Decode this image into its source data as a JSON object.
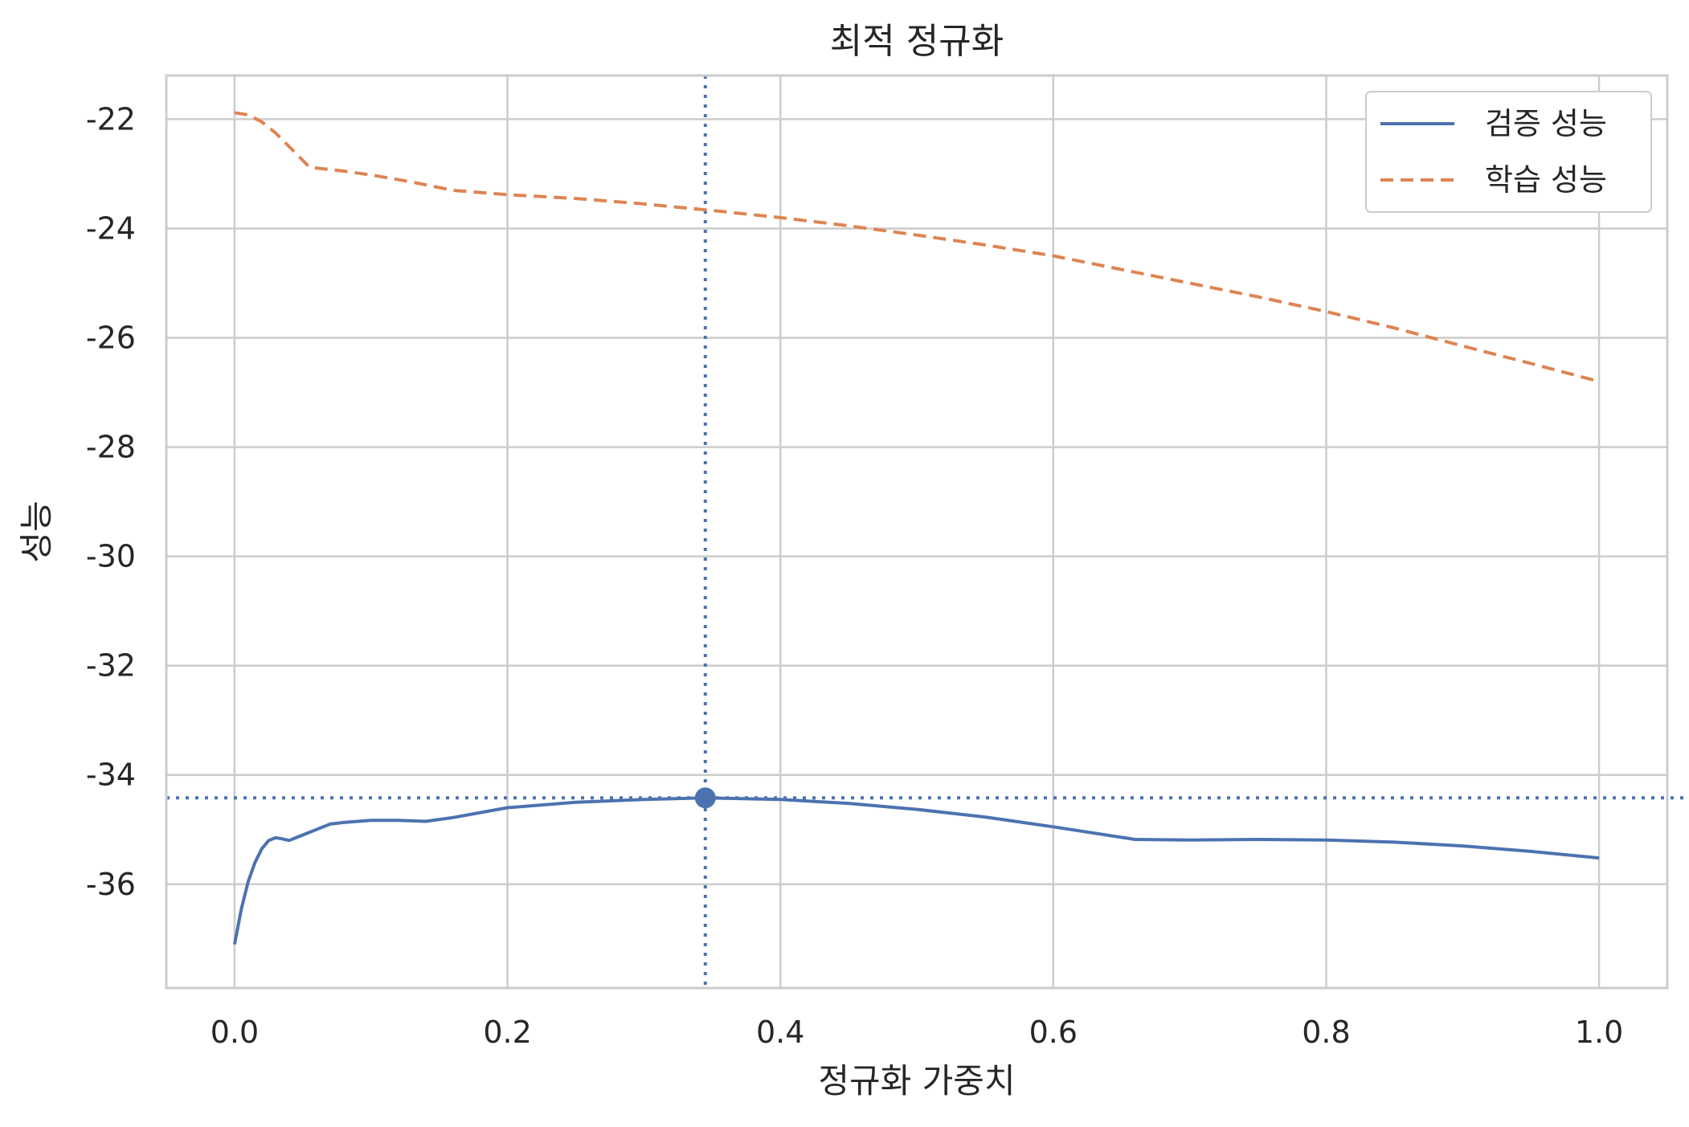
{
  "chart_data": {
    "type": "line",
    "title": "최적 정규화",
    "xlabel": "정규화 가중치",
    "ylabel": "성능",
    "xlim": [
      -0.05,
      1.05
    ],
    "ylim": [
      -37.9,
      -21.2
    ],
    "xticks": [
      0.0,
      0.2,
      0.4,
      0.6,
      0.8,
      1.0
    ],
    "xtick_labels": [
      "0.0",
      "0.2",
      "0.4",
      "0.6",
      "0.8",
      "1.0"
    ],
    "yticks": [
      -22,
      -24,
      -26,
      -28,
      -30,
      -32,
      -34,
      -36
    ],
    "ytick_labels": [
      "-22",
      "-24",
      "-26",
      "-28",
      "-30",
      "-32",
      "-34",
      "-36"
    ],
    "grid": true,
    "legend_position": "top-right",
    "series": [
      {
        "name": "검증 성능",
        "color": "#4c72b0",
        "style": "solid",
        "x": [
          0.0,
          0.005,
          0.01,
          0.015,
          0.02,
          0.025,
          0.03,
          0.035,
          0.04,
          0.045,
          0.05,
          0.06,
          0.07,
          0.08,
          0.1,
          0.12,
          0.14,
          0.16,
          0.2,
          0.25,
          0.3,
          0.345,
          0.4,
          0.45,
          0.5,
          0.55,
          0.6,
          0.66,
          0.7,
          0.75,
          0.8,
          0.85,
          0.9,
          0.95,
          1.0
        ],
        "y": [
          -37.1,
          -36.45,
          -35.95,
          -35.6,
          -35.35,
          -35.2,
          -35.15,
          -35.17,
          -35.2,
          -35.15,
          -35.1,
          -35.0,
          -34.9,
          -34.87,
          -34.83,
          -34.83,
          -34.85,
          -34.78,
          -34.6,
          -34.5,
          -34.45,
          -34.42,
          -34.45,
          -34.52,
          -34.63,
          -34.77,
          -34.95,
          -35.18,
          -35.19,
          -35.18,
          -35.19,
          -35.23,
          -35.3,
          -35.4,
          -35.52
        ]
      },
      {
        "name": "학습 성능",
        "color": "#dd8452",
        "style": "dashed",
        "x": [
          0.0,
          0.01,
          0.02,
          0.03,
          0.04,
          0.055,
          0.08,
          0.1,
          0.13,
          0.16,
          0.2,
          0.25,
          0.3,
          0.35,
          0.4,
          0.45,
          0.5,
          0.55,
          0.6,
          0.65,
          0.7,
          0.75,
          0.8,
          0.85,
          0.9,
          0.95,
          1.0
        ],
        "y": [
          -21.88,
          -21.92,
          -22.05,
          -22.25,
          -22.5,
          -22.88,
          -22.95,
          -23.02,
          -23.15,
          -23.3,
          -23.38,
          -23.45,
          -23.55,
          -23.67,
          -23.8,
          -23.95,
          -24.12,
          -24.3,
          -24.5,
          -24.75,
          -25.0,
          -25.25,
          -25.52,
          -25.82,
          -26.15,
          -26.47,
          -26.8
        ]
      }
    ],
    "reference_lines": [
      {
        "orientation": "vertical",
        "value": 0.345,
        "color": "#4c72b0",
        "style": "dotted"
      },
      {
        "orientation": "horizontal",
        "value": -34.42,
        "color": "#4c72b0",
        "style": "dotted"
      }
    ],
    "highlight_point": {
      "x": 0.345,
      "y": -34.42,
      "color": "#4c72b0"
    }
  }
}
